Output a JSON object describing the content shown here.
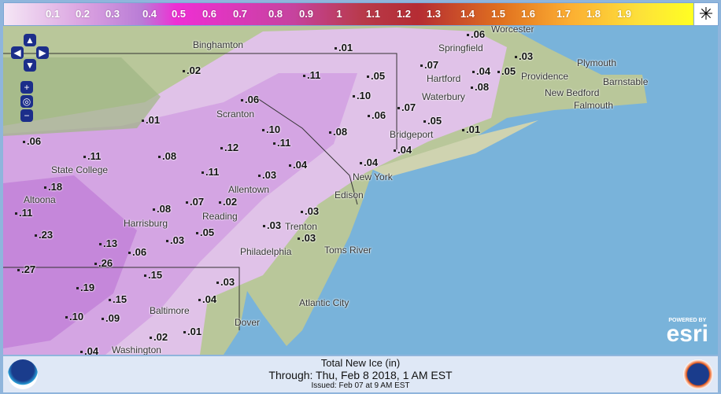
{
  "legend": {
    "ticks": [
      "0.1",
      "0.2",
      "0.3",
      "0.4",
      "0.5",
      "0.6",
      "0.7",
      "0.8",
      "0.9",
      "1",
      "1.1",
      "1.2",
      "1.3",
      "1.4",
      "1.5",
      "1.6",
      "1.7",
      "1.8",
      "1.9"
    ],
    "icon": "color-scale-icon"
  },
  "cities": [
    "Binghamton",
    "Springfield",
    "Worcester",
    "Plymouth",
    "Hartford",
    "Providence",
    "Barnstable",
    "Waterbury",
    "New Bedford",
    "Falmouth",
    "Scranton",
    "Bridgeport",
    "State College",
    "New York",
    "Edison",
    "Altoona",
    "Allentown",
    "Harrisburg",
    "Reading",
    "Trenton",
    "Toms River",
    "Philadelphia",
    "Atlantic City",
    "Baltimore",
    "Dover",
    "Washington"
  ],
  "values": [
    ".01",
    ".06",
    ".03",
    ".02",
    ".11",
    ".05",
    ".07",
    ".04",
    ".05",
    ".10",
    ".08",
    ".07",
    ".06",
    ".01",
    ".10",
    ".06",
    ".05",
    ".01",
    ".06",
    ".11",
    ".08",
    ".12",
    ".11",
    ".08",
    ".04",
    ".04",
    ".03",
    ".04",
    ".11",
    ".18",
    ".11",
    ".08",
    ".07",
    ".02",
    ".03",
    ".23",
    ".13",
    ".03",
    ".05",
    ".03",
    ".06",
    ".26",
    ".03",
    ".27",
    ".19",
    ".15",
    ".03",
    ".15",
    ".04",
    ".10",
    ".09",
    ".02",
    ".01",
    ".04"
  ],
  "nav": {
    "up": "▲",
    "down": "▼",
    "left": "◀",
    "right": "▶",
    "zoom_in": "+",
    "zoom_out": "−"
  },
  "esri": {
    "powered": "POWERED BY",
    "logo": "esri"
  },
  "footer": {
    "title": "Total New Ice (in)",
    "through": "Through: Thu, Feb  8 2018,   1 AM EST",
    "issued": "Issued: Feb 07 at 9 AM EST"
  },
  "colors": {
    "ocean": "#79b3da",
    "land": "#b9c79a",
    "ice_light": "#e2c2ec",
    "ice_mid": "#c98fdc"
  }
}
